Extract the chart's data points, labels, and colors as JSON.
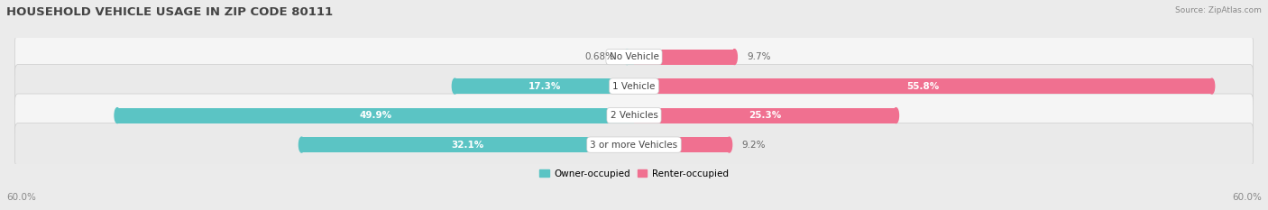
{
  "title": "HOUSEHOLD VEHICLE USAGE IN ZIP CODE 80111",
  "source": "Source: ZipAtlas.com",
  "categories": [
    "No Vehicle",
    "1 Vehicle",
    "2 Vehicles",
    "3 or more Vehicles"
  ],
  "owner_values": [
    0.68,
    17.3,
    49.9,
    32.1
  ],
  "renter_values": [
    9.7,
    55.8,
    25.3,
    9.2
  ],
  "owner_color": "#5bc4c4",
  "renter_color": "#f07090",
  "owner_label": "Owner-occupied",
  "renter_label": "Renter-occupied",
  "axis_max": 60.0,
  "axis_label_left": "60.0%",
  "axis_label_right": "60.0%",
  "bar_height": 0.52,
  "background_color": "#ebebeb",
  "row_bg_even": "#f5f5f5",
  "row_bg_odd": "#eaeaea",
  "title_fontsize": 9.5,
  "label_fontsize": 7.5,
  "category_fontsize": 7.5,
  "value_fontsize": 7.5,
  "legend_fontsize": 7.5,
  "source_fontsize": 6.5
}
